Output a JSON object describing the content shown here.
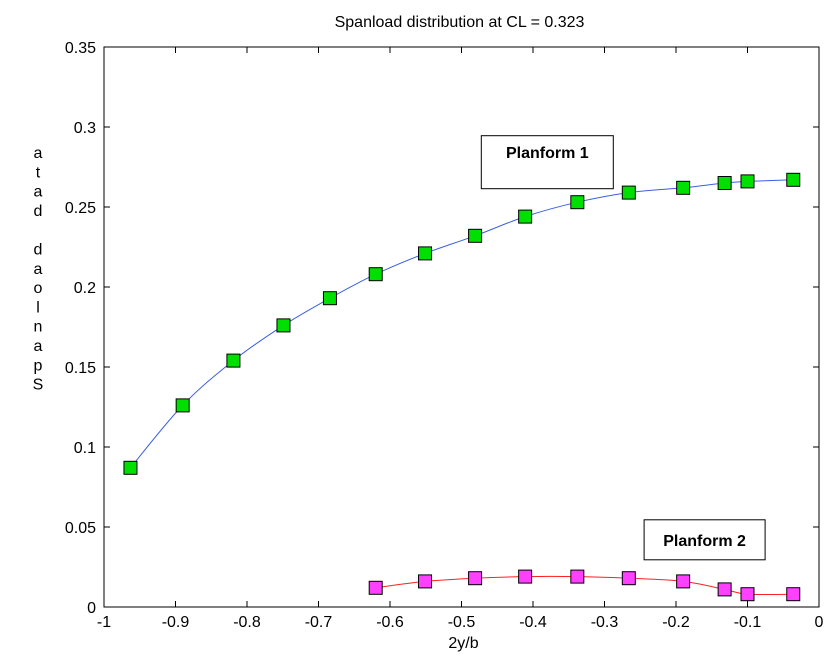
{
  "chart_data": {
    "type": "line",
    "title": "Spanload distribution at CL = 0.323",
    "xlabel": "2y/b",
    "ylabel": "Spanload data",
    "ylabel_vertical_chars": [
      "a",
      "t",
      "a",
      "d",
      "",
      "d",
      "a",
      "o",
      "l",
      "n",
      "a",
      "p",
      "S"
    ],
    "xlim": [
      -1,
      0
    ],
    "ylim": [
      0,
      0.35
    ],
    "xticks": [
      -1,
      -0.9,
      -0.8,
      -0.7,
      -0.6,
      -0.5,
      -0.4,
      -0.3,
      -0.2,
      -0.1,
      0
    ],
    "xtick_labels": [
      "-1",
      "-0.9",
      "-0.8",
      "-0.7",
      "-0.6",
      "-0.5",
      "-0.4",
      "-0.3",
      "-0.2",
      "-0.1",
      "0"
    ],
    "yticks": [
      0,
      0.05,
      0.1,
      0.15,
      0.2,
      0.25,
      0.3,
      0.35
    ],
    "ytick_labels": [
      "0",
      "0.05",
      "0.1",
      "0.15",
      "0.2",
      "0.25",
      "0.3",
      "0.35"
    ],
    "grid": false,
    "series": [
      {
        "line_color": "#3a5fe0",
        "marker_color": "#00e000",
        "marker": "square",
        "x": [
          -0.963,
          -0.89,
          -0.819,
          -0.749,
          -0.684,
          -0.62,
          -0.551,
          -0.481,
          -0.411,
          -0.338,
          -0.266,
          -0.19,
          -0.132,
          -0.1,
          -0.036
        ],
        "y": [
          0.087,
          0.126,
          0.154,
          0.176,
          0.193,
          0.208,
          0.221,
          0.232,
          0.244,
          0.253,
          0.259,
          0.262,
          0.265,
          0.266,
          0.267
        ]
      },
      {
        "line_color": "#ff2020",
        "marker_color": "#ff40ff",
        "marker": "square",
        "x": [
          -0.62,
          -0.551,
          -0.481,
          -0.411,
          -0.338,
          -0.266,
          -0.19,
          -0.132,
          -0.1,
          -0.036
        ],
        "y": [
          0.012,
          0.016,
          0.018,
          0.019,
          0.019,
          0.018,
          0.016,
          0.011,
          0.008,
          0.008
        ]
      }
    ],
    "annotations": [
      {
        "text": "Planform 1",
        "x": -0.38,
        "y": 0.278
      },
      {
        "text": "Planform 2",
        "x": -0.16,
        "y": 0.042
      }
    ]
  }
}
